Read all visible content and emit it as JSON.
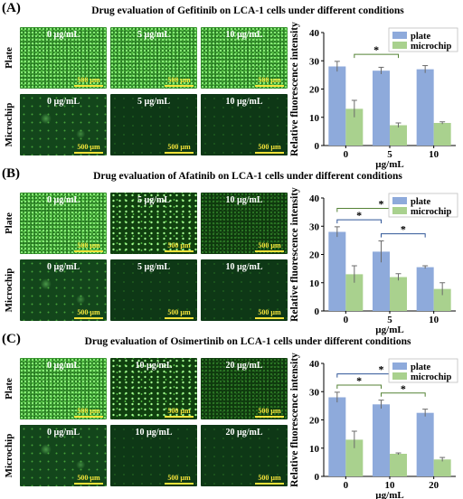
{
  "panels": [
    {
      "label": "(A)",
      "title": "Drug evaluation of Gefitinib on LCA-1 cells under different conditions",
      "row_labels": [
        "Plate",
        "Microchip"
      ],
      "plate_images": [
        "0 µg/mL",
        "5 µg/mL",
        "10 µg/mL"
      ],
      "microchip_images": [
        "0 µg/mL",
        "5 µg/mL",
        "10 µg/mL"
      ],
      "scale_bar": "500 µm",
      "chart_data": {
        "type": "bar",
        "categories": [
          "0",
          "5",
          "10"
        ],
        "series": [
          {
            "name": "plate",
            "values": [
              28,
              26.5,
              27
            ],
            "errors": [
              1.8,
              1.2,
              1.3
            ],
            "color": "#8eaadb"
          },
          {
            "name": "microchip",
            "values": [
              13,
              7.2,
              8
            ],
            "errors": [
              3,
              0.8,
              0.4
            ],
            "color": "#a9d18e"
          }
        ],
        "ylabel": "Relative fluorescence intensity",
        "xlabel": "µg/mL",
        "yticks": [
          0,
          10,
          20,
          30,
          40
        ],
        "ylim": [
          0,
          40
        ],
        "legend": "top-right",
        "significance": [
          {
            "series": 1,
            "from": 0,
            "to": 1,
            "label": "*",
            "color": "#548235"
          }
        ]
      }
    },
    {
      "label": "(B)",
      "title": "Drug evaluation of Afatinib on LCA-1 cells under different conditions",
      "row_labels": [
        "Plate",
        "Microchip"
      ],
      "plate_images": [
        "0 µg/mL",
        "5 µg/mL",
        "10 µg/mL"
      ],
      "microchip_images": [
        "0 µg/mL",
        "5 µg/mL",
        "10 µg/mL"
      ],
      "scale_bar": "500 µm",
      "chart_data": {
        "type": "bar",
        "categories": [
          "0",
          "5",
          "10"
        ],
        "series": [
          {
            "name": "plate",
            "values": [
              28,
              21,
              15.5
            ],
            "errors": [
              1.8,
              3.8,
              0.5
            ],
            "color": "#8eaadb"
          },
          {
            "name": "microchip",
            "values": [
              13,
              12,
              7.8
            ],
            "errors": [
              3,
              1.2,
              2.2
            ],
            "color": "#a9d18e"
          }
        ],
        "ylabel": "Relative fluorescence intensity",
        "xlabel": "µg/mL",
        "yticks": [
          0,
          10,
          20,
          30,
          40
        ],
        "ylim": [
          0,
          40
        ],
        "legend": "top-right",
        "significance": [
          {
            "series": 0,
            "from": 0,
            "to": 1,
            "label": "*",
            "color": "#2f5597"
          },
          {
            "series": 0,
            "from": 1,
            "to": 2,
            "label": "*",
            "color": "#2f5597"
          },
          {
            "series": 0,
            "from": 0,
            "to": 2,
            "label": "*",
            "color": "#548235"
          }
        ]
      }
    },
    {
      "label": "(C)",
      "title": "Drug evaluation of Osimertinib on LCA-1 cells under different conditions",
      "row_labels": [
        "Plate",
        "Microchip"
      ],
      "plate_images": [
        "0 µg/mL",
        "10 µg/mL",
        "20 µg/mL"
      ],
      "microchip_images": [
        "0 µg/mL",
        "10 µg/mL",
        "20 µg/mL"
      ],
      "scale_bar": "500 µm",
      "chart_data": {
        "type": "bar",
        "categories": [
          "0",
          "10",
          "20"
        ],
        "series": [
          {
            "name": "plate",
            "values": [
              28,
              25.5,
              22.5
            ],
            "errors": [
              1.8,
              1.5,
              1.3
            ],
            "color": "#8eaadb"
          },
          {
            "name": "microchip",
            "values": [
              13,
              8,
              6
            ],
            "errors": [
              3,
              0.3,
              0.7
            ],
            "color": "#a9d18e"
          }
        ],
        "ylabel": "Relative fluorescence intensity",
        "xlabel": "µg/mL",
        "yticks": [
          0,
          10,
          20,
          30,
          40
        ],
        "ylim": [
          0,
          40
        ],
        "legend": "top-right",
        "significance": [
          {
            "series": 0,
            "from": 0,
            "to": 2,
            "label": "*",
            "color": "#2f5597"
          },
          {
            "series": 0,
            "from": 0,
            "to": 1,
            "label": "*",
            "color": "#548235"
          },
          {
            "series": 0,
            "from": 1,
            "to": 2,
            "label": "*",
            "color": "#548235"
          }
        ]
      }
    }
  ]
}
